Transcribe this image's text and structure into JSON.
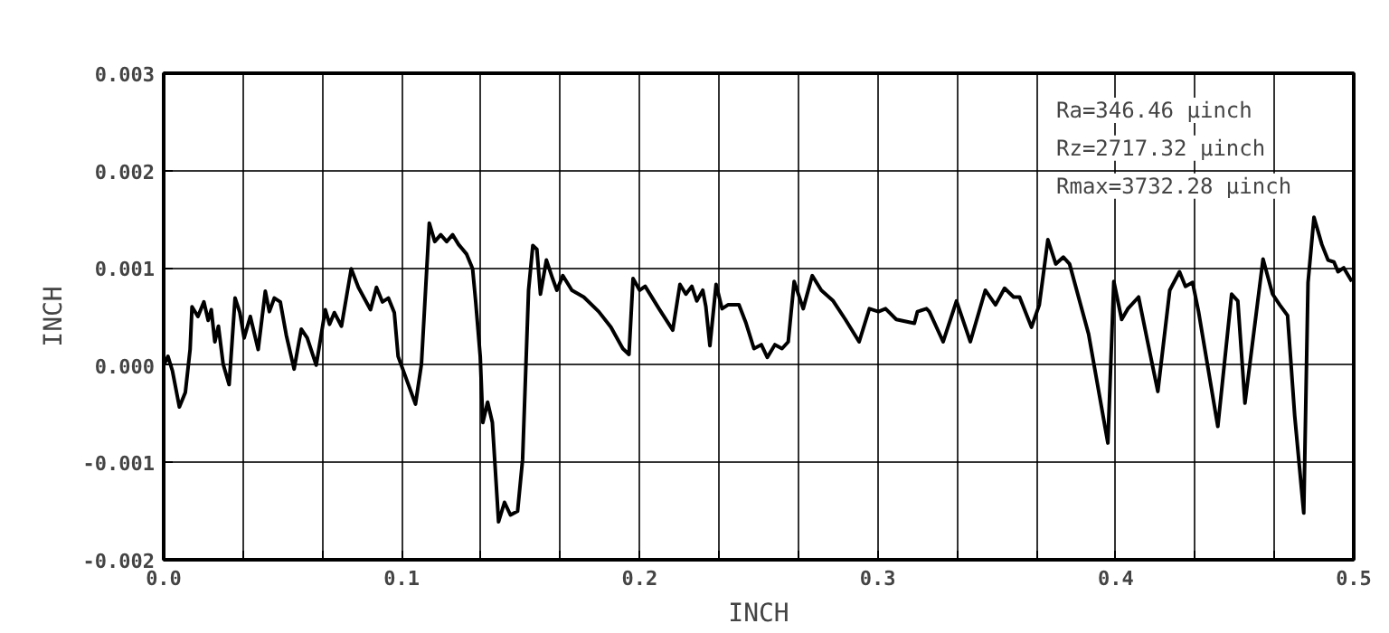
{
  "chart_data": {
    "type": "line",
    "xlabel": "INCH",
    "ylabel": "INCH",
    "annotations": [
      "Ra=346.46 µinch",
      "Rz=2717.32 µinch",
      "Rmax=3732.28 µinch"
    ],
    "xlim": [
      0,
      0.5
    ],
    "ylim": [
      -0.002,
      0.003
    ],
    "xticks": [
      {
        "value": 0,
        "label": "0.0"
      },
      {
        "value": 0.0333,
        "label": null
      },
      {
        "value": 0.0667,
        "label": null
      },
      {
        "value": 0.1,
        "label": "0.1"
      },
      {
        "value": 0.1333,
        "label": null
      },
      {
        "value": 0.1667,
        "label": null
      },
      {
        "value": 0.2,
        "label": "0.2"
      },
      {
        "value": 0.2333,
        "label": null
      },
      {
        "value": 0.2667,
        "label": null
      },
      {
        "value": 0.3,
        "label": "0.3"
      },
      {
        "value": 0.3333,
        "label": null
      },
      {
        "value": 0.3667,
        "label": null
      },
      {
        "value": 0.4,
        "label": "0.4"
      },
      {
        "value": 0.4333,
        "label": null
      },
      {
        "value": 0.4667,
        "label": null
      },
      {
        "value": 0.5,
        "label": "0.5"
      }
    ],
    "yticks": [
      {
        "value": -0.002,
        "label": "-0.002"
      },
      {
        "value": -0.001,
        "label": "-0.001"
      },
      {
        "value": 0,
        "label": "0.000"
      },
      {
        "value": 0.001,
        "label": "0.001"
      },
      {
        "value": 0.002,
        "label": "0.002"
      },
      {
        "value": 0.003,
        "label": "0.003"
      }
    ],
    "grid": true,
    "marker": "none",
    "line_style": "solid",
    "series": [
      {
        "color": "#000000",
        "x": [
          0,
          0.0018,
          0.0037,
          0.0066,
          0.0091,
          0.0111,
          0.0119,
          0.0144,
          0.0169,
          0.0187,
          0.02,
          0.0215,
          0.023,
          0.025,
          0.0275,
          0.03,
          0.032,
          0.0338,
          0.0364,
          0.0397,
          0.0427,
          0.0444,
          0.0465,
          0.049,
          0.0515,
          0.0548,
          0.0578,
          0.0603,
          0.0641,
          0.0679,
          0.0697,
          0.0717,
          0.0747,
          0.0788,
          0.0818,
          0.0869,
          0.0894,
          0.0919,
          0.0944,
          0.0969,
          0.0985,
          0.1058,
          0.1083,
          0.1116,
          0.1139,
          0.1164,
          0.1189,
          0.1214,
          0.1239,
          0.1273,
          0.1298,
          0.1311,
          0.133,
          0.1341,
          0.1361,
          0.1381,
          0.1407,
          0.1432,
          0.1457,
          0.1487,
          0.1508,
          0.1533,
          0.1551,
          0.1568,
          0.1583,
          0.1608,
          0.1634,
          0.1652,
          0.1677,
          0.1715,
          0.1765,
          0.1828,
          0.1879,
          0.1929,
          0.1955,
          0.1972,
          0.2,
          0.2023,
          0.2081,
          0.2139,
          0.2169,
          0.2194,
          0.2219,
          0.224,
          0.2265,
          0.2278,
          0.2295,
          0.2321,
          0.2346,
          0.2371,
          0.2417,
          0.2447,
          0.248,
          0.2511,
          0.2536,
          0.2568,
          0.2598,
          0.2624,
          0.2649,
          0.2687,
          0.2725,
          0.2763,
          0.2813,
          0.2864,
          0.2922,
          0.2965,
          0.3003,
          0.3033,
          0.3078,
          0.3154,
          0.3167,
          0.3205,
          0.3217,
          0.3275,
          0.3331,
          0.3389,
          0.3452,
          0.3495,
          0.3533,
          0.3571,
          0.3596,
          0.3646,
          0.3679,
          0.3715,
          0.3748,
          0.378,
          0.3806,
          0.3886,
          0.3967,
          0.3992,
          0.4025,
          0.4051,
          0.4096,
          0.4134,
          0.4177,
          0.4227,
          0.4268,
          0.4293,
          0.4323,
          0.4348,
          0.4429,
          0.4487,
          0.4513,
          0.4543,
          0.4619,
          0.4659,
          0.4689,
          0.4722,
          0.4752,
          0.479,
          0.4808,
          0.4833,
          0.4866,
          0.4892,
          0.4917,
          0.4934,
          0.4958,
          0.4992
        ],
        "values": [
          0,
          9e-05,
          -6e-05,
          -0.00043,
          -0.00028,
          0.00016,
          0.0006,
          0.0005,
          0.00065,
          0.00046,
          0.00057,
          0.00024,
          0.0004,
          1e-05,
          -0.0002,
          0.00069,
          0.00054,
          0.00028,
          0.0005,
          0.00016,
          0.00076,
          0.00055,
          0.00069,
          0.00065,
          0.00031,
          -4e-05,
          0.00037,
          0.00028,
          0,
          0.00057,
          0.00042,
          0.00054,
          0.0004,
          0.00099,
          0.0008,
          0.00057,
          0.0008,
          0.00065,
          0.00069,
          0.00054,
          9e-05,
          -0.0004,
          1e-05,
          0.00146,
          0.00127,
          0.00134,
          0.00127,
          0.00134,
          0.00124,
          0.00114,
          0.00099,
          0.00065,
          9e-05,
          -0.00059,
          -0.00038,
          -0.00059,
          -0.00161,
          -0.00141,
          -0.00154,
          -0.0015,
          -0.00097,
          0.00077,
          0.00123,
          0.00119,
          0.00073,
          0.00108,
          0.00089,
          0.00077,
          0.00092,
          0.00077,
          0.0007,
          0.00055,
          0.00039,
          0.00017,
          0.00011,
          0.00089,
          0.00077,
          0.00081,
          0.00058,
          0.00036,
          0.00083,
          0.00073,
          0.00081,
          0.00066,
          0.00077,
          0.0006,
          0.0002,
          0.00083,
          0.00058,
          0.00062,
          0.00062,
          0.00043,
          0.00017,
          0.00021,
          8e-05,
          0.00021,
          0.00017,
          0.00024,
          0.00086,
          0.00058,
          0.00092,
          0.00077,
          0.00066,
          0.00047,
          0.00024,
          0.00058,
          0.00055,
          0.00058,
          0.00047,
          0.00043,
          0.00055,
          0.00058,
          0.00055,
          0.00024,
          0.00066,
          0.00024,
          0.00077,
          0.00062,
          0.00079,
          0.0007,
          0.0007,
          0.00039,
          0.00062,
          0.00129,
          0.00104,
          0.00111,
          0.00104,
          0.00032,
          -0.0008,
          0.00086,
          0.00047,
          0.00058,
          0.0007,
          0.00024,
          -0.00027,
          0.00077,
          0.00096,
          0.00081,
          0.00085,
          0.00055,
          -0.00063,
          0.00073,
          0.00066,
          -0.00039,
          0.00109,
          0.00073,
          0.00062,
          0.00051,
          -0.00052,
          -0.00152,
          0.00085,
          0.00152,
          0.00124,
          0.00108,
          0.00106,
          0.00096,
          0.001,
          0.00086
        ]
      }
    ]
  }
}
